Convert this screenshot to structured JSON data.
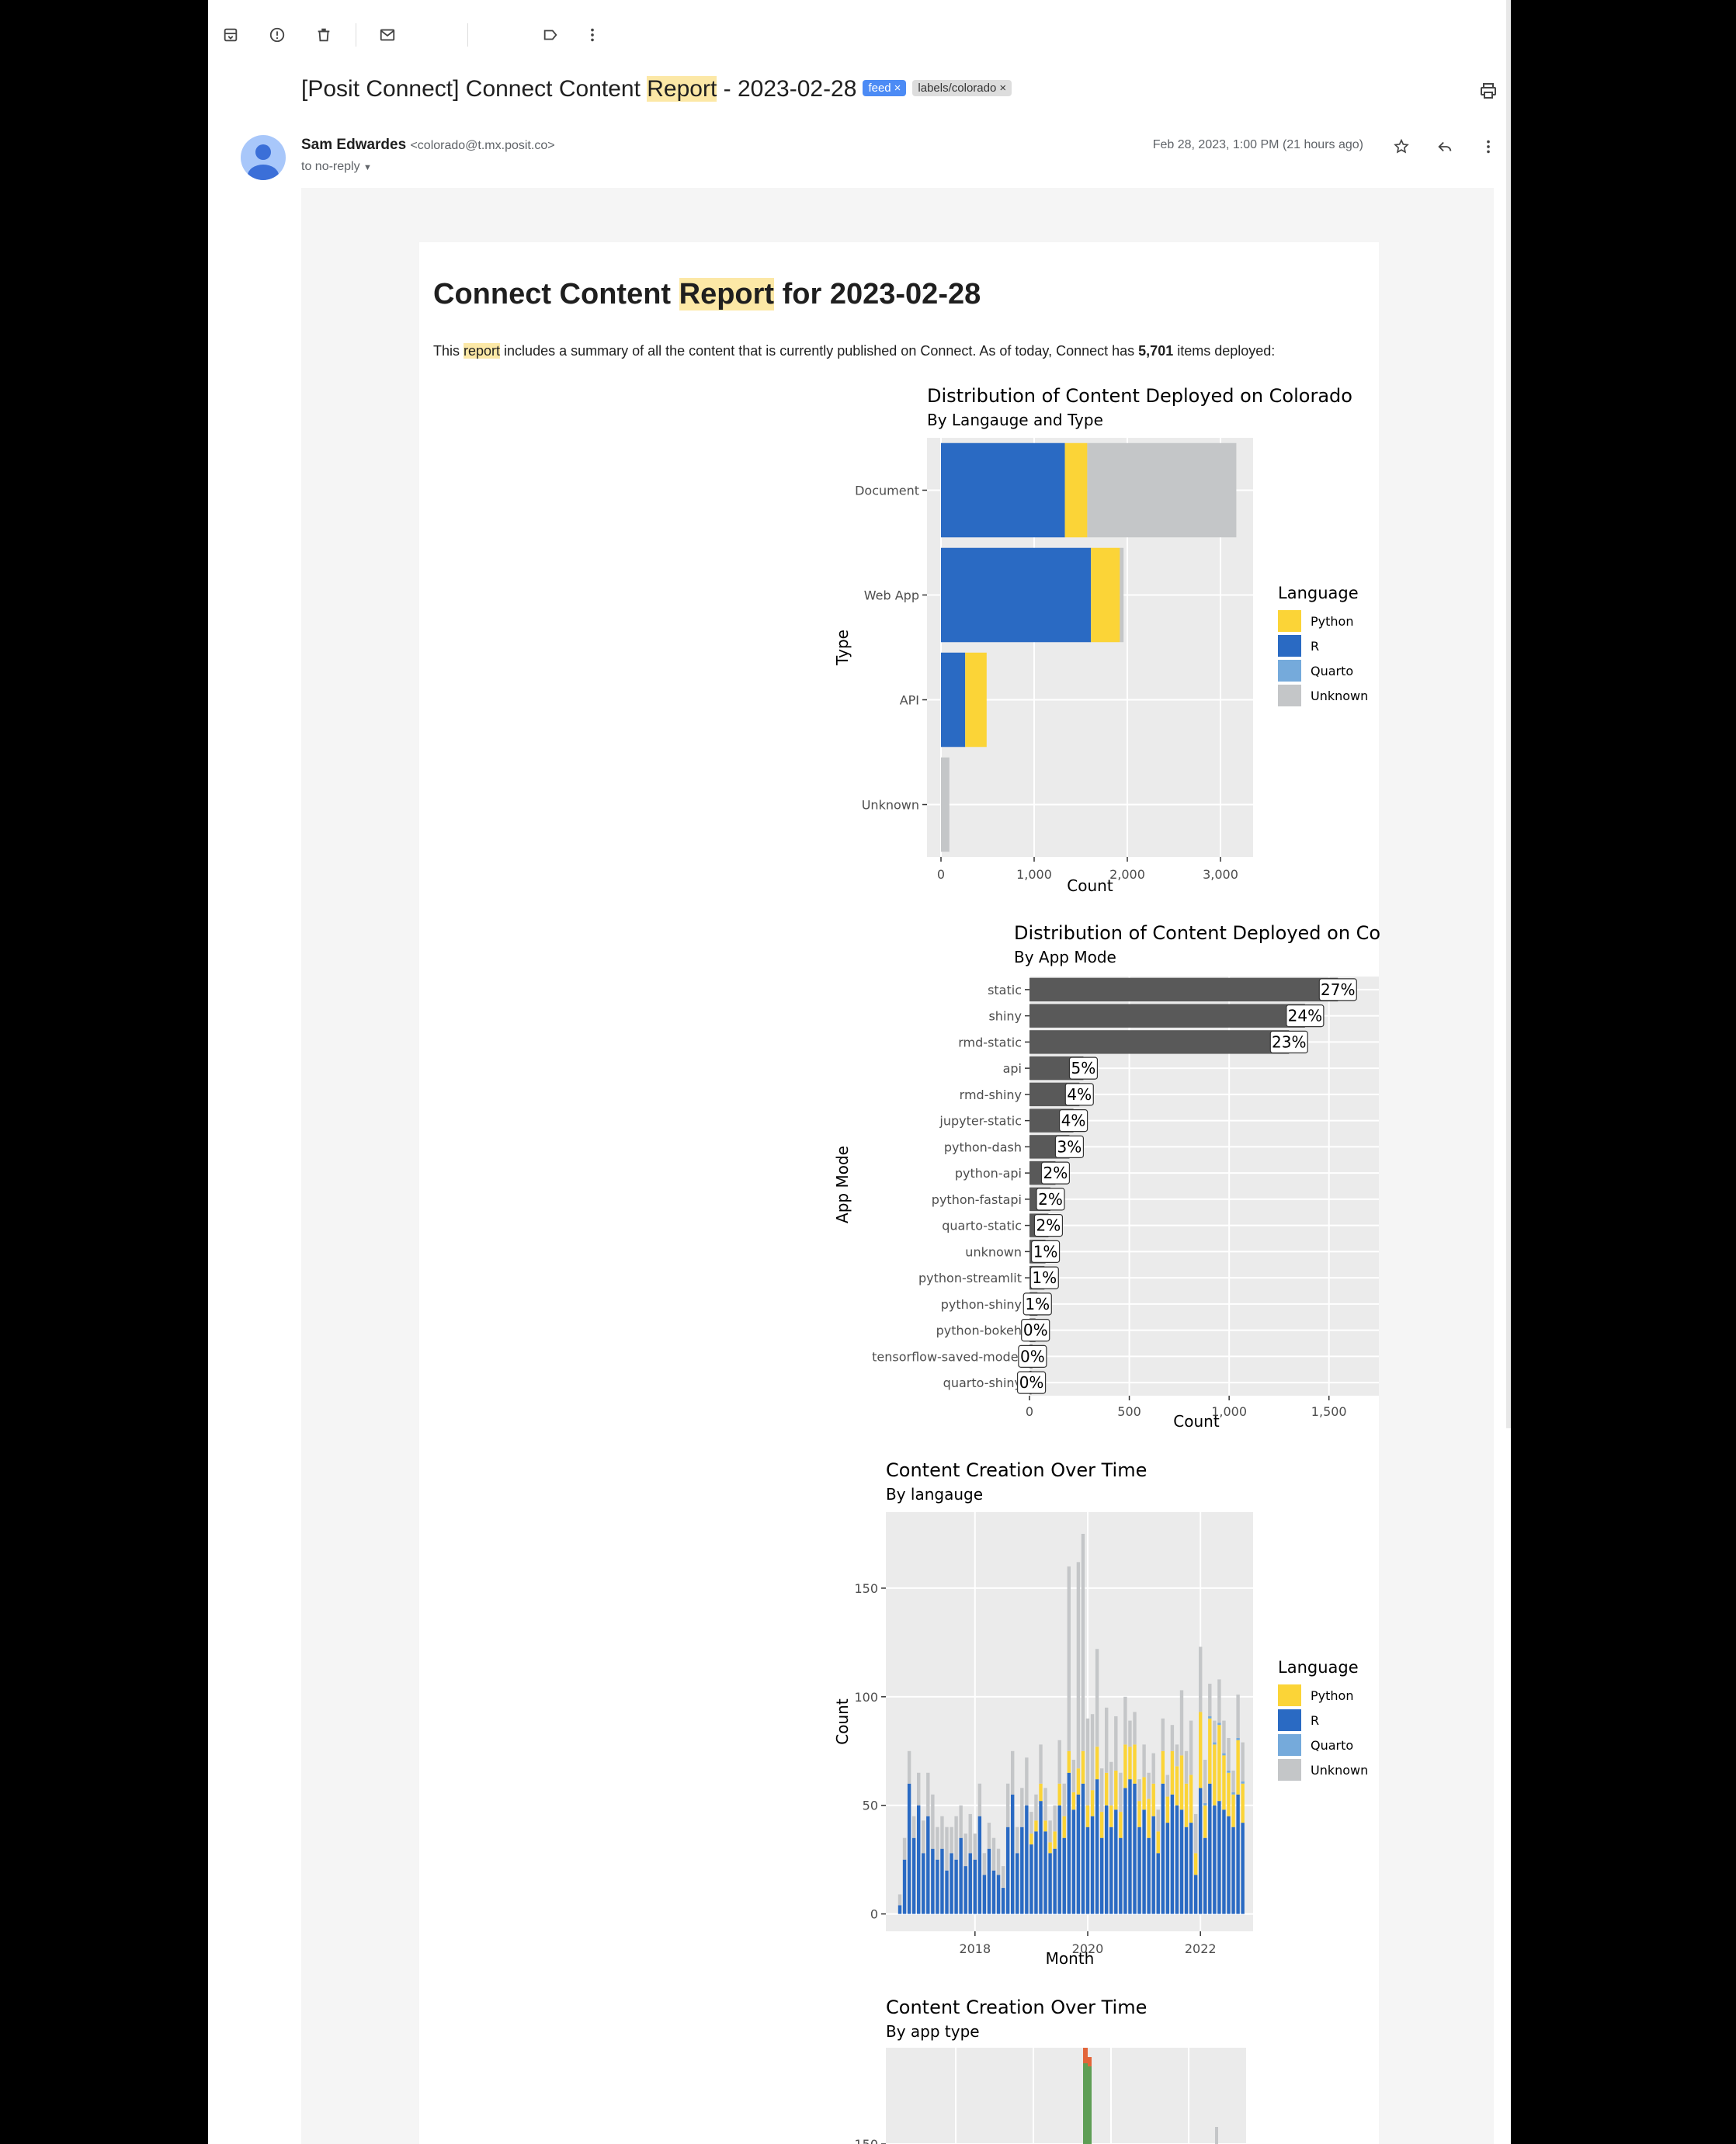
{
  "toolbar": {
    "icons": [
      "archive-icon",
      "report-spam-icon",
      "delete-icon",
      "mark-unread-icon",
      "label-icon",
      "more-vert-icon"
    ]
  },
  "email": {
    "subject_pre": "[Posit Connect] Connect Content ",
    "subject_hl": "Report",
    "subject_post": " - 2023-02-28",
    "labels": [
      "feed",
      "labels/colorado"
    ],
    "sender_name": "Sam Edwardes",
    "sender_email": "<colorado@t.mx.posit.co>",
    "recipient": "to no-reply",
    "date": "Feb 28, 2023, 1:00 PM (21 hours ago)"
  },
  "report": {
    "title_pre": "Connect Content ",
    "title_hl": "Report",
    "title_post": " for 2023-02-28",
    "intro_pre": "This ",
    "intro_hl": "report",
    "intro_mid": " includes a summary of all the content that is currently published on Connect. As of today, Connect has ",
    "intro_count": "5,701",
    "intro_post": " items deployed:"
  },
  "colors": {
    "python": "#fbd437",
    "r": "#2a6ac3",
    "quarto": "#75aadb",
    "unknown": "#c4c6c8",
    "bar_dark": "#595959",
    "panel": "#ebebeb"
  },
  "chart_data": [
    {
      "type": "bar",
      "orientation": "horizontal",
      "stacked": true,
      "title": "Distribution of Content Deployed on Colorado",
      "subtitle": "By Langauge and Type",
      "xlabel": "Count",
      "ylabel": "Type",
      "xlim": [
        0,
        3300
      ],
      "xticks": [
        0,
        1000,
        2000,
        3000
      ],
      "xtick_labels": [
        "0",
        "1,000",
        "2,000",
        "3,000"
      ],
      "categories": [
        "Document",
        "Web App",
        "API",
        "Unknown"
      ],
      "series": [
        {
          "name": "R",
          "values": [
            1330,
            1610,
            260,
            0
          ]
        },
        {
          "name": "Python",
          "values": [
            240,
            310,
            230,
            0
          ]
        },
        {
          "name": "Quarto",
          "values": [
            0,
            0,
            0,
            0
          ]
        },
        {
          "name": "Unknown",
          "values": [
            1600,
            40,
            0,
            90
          ]
        }
      ],
      "legend_title": "Language",
      "legend_entries": [
        "Python",
        "R",
        "Quarto",
        "Unknown"
      ],
      "legend": "right"
    },
    {
      "type": "bar",
      "orientation": "horizontal",
      "title": "Distribution of Content Deployed on Co",
      "subtitle": "By App Mode",
      "xlabel": "Count",
      "ylabel": "App Mode",
      "xlim": [
        0,
        1750
      ],
      "xticks": [
        0,
        500,
        1000,
        1500
      ],
      "xtick_labels": [
        "0",
        "500",
        "1,000",
        "1,500"
      ],
      "categories": [
        "static",
        "shiny",
        "rmd-static",
        "api",
        "rmd-shiny",
        "jupyter-static",
        "python-dash",
        "python-api",
        "python-fastapi",
        "quarto-static",
        "unknown",
        "python-streamlit",
        "python-shiny",
        "python-bokeh",
        "tensorflow-saved-model",
        "quarto-shiny"
      ],
      "values": [
        1545,
        1380,
        1300,
        270,
        250,
        220,
        200,
        130,
        105,
        95,
        80,
        75,
        40,
        30,
        15,
        10
      ],
      "labels": [
        "27%",
        "24%",
        "23%",
        "5%",
        "4%",
        "4%",
        "3%",
        "2%",
        "2%",
        "2%",
        "1%",
        "1%",
        "1%",
        "0%",
        "0%",
        "0%"
      ]
    },
    {
      "type": "bar",
      "stacked": true,
      "title": "Content Creation Over Time",
      "subtitle": "By langauge",
      "xlabel": "Month",
      "ylabel": "Count",
      "ylim": [
        0,
        185
      ],
      "yticks": [
        0,
        50,
        100,
        150
      ],
      "xtick_labels": [
        "2018",
        "2020",
        "2022"
      ],
      "legend_title": "Language",
      "legend_entries": [
        "Python",
        "R",
        "Quarto",
        "Unknown"
      ],
      "legend": "right",
      "series_note": "monthly stacked bars 2016-11 to 2023-02",
      "r": [
        4,
        25,
        60,
        35,
        50,
        28,
        45,
        30,
        25,
        30,
        20,
        28,
        25,
        35,
        22,
        28,
        25,
        45,
        18,
        30,
        20,
        18,
        12,
        40,
        55,
        28,
        40,
        50,
        32,
        38,
        52,
        38,
        28,
        30,
        50,
        35,
        65,
        48,
        55,
        60,
        40,
        45,
        62,
        35,
        50,
        40,
        48,
        35,
        58,
        62,
        60,
        40,
        48,
        35,
        45,
        28,
        60,
        42,
        55,
        50,
        48,
        40,
        42,
        18,
        58,
        35,
        60,
        50,
        52,
        48,
        45,
        40,
        55,
        42
      ],
      "python": [
        0,
        0,
        0,
        0,
        0,
        0,
        0,
        0,
        0,
        0,
        0,
        0,
        0,
        0,
        0,
        0,
        0,
        0,
        0,
        0,
        0,
        0,
        0,
        0,
        0,
        0,
        0,
        0,
        5,
        5,
        8,
        5,
        5,
        8,
        10,
        10,
        10,
        8,
        12,
        15,
        10,
        12,
        15,
        12,
        15,
        10,
        18,
        12,
        20,
        15,
        18,
        12,
        15,
        18,
        15,
        10,
        15,
        12,
        20,
        18,
        25,
        20,
        22,
        10,
        35,
        15,
        30,
        28,
        35,
        25,
        20,
        15,
        25,
        18
      ],
      "unknown": [
        5,
        10,
        15,
        10,
        15,
        15,
        20,
        25,
        15,
        15,
        20,
        12,
        20,
        15,
        15,
        18,
        12,
        15,
        10,
        12,
        15,
        12,
        10,
        20,
        20,
        12,
        18,
        22,
        10,
        12,
        18,
        15,
        10,
        12,
        20,
        15,
        85,
        15,
        95,
        100,
        40,
        35,
        45,
        20,
        30,
        20,
        25,
        18,
        22,
        12,
        15,
        10,
        15,
        12,
        14,
        10,
        15,
        10,
        12,
        10,
        30,
        15,
        25,
        18,
        30,
        20,
        15,
        10,
        20,
        15,
        15,
        10,
        20,
        18
      ],
      "quarto": [
        0,
        0,
        0,
        0,
        0,
        0,
        0,
        0,
        0,
        0,
        0,
        0,
        0,
        0,
        0,
        0,
        0,
        0,
        0,
        0,
        0,
        0,
        0,
        0,
        0,
        0,
        0,
        0,
        0,
        0,
        0,
        0,
        0,
        0,
        0,
        0,
        0,
        0,
        0,
        0,
        0,
        0,
        0,
        0,
        0,
        0,
        0,
        0,
        0,
        0,
        0,
        0,
        0,
        0,
        0,
        0,
        0,
        0,
        0,
        0,
        0,
        0,
        0,
        0,
        0,
        1,
        1,
        1,
        1,
        1,
        1,
        1,
        1,
        1
      ]
    },
    {
      "type": "bar",
      "stacked": true,
      "title": "Content Creation Over Time",
      "subtitle": "By app type",
      "ylim": [
        0,
        185
      ],
      "yticks": [
        150
      ]
    }
  ]
}
